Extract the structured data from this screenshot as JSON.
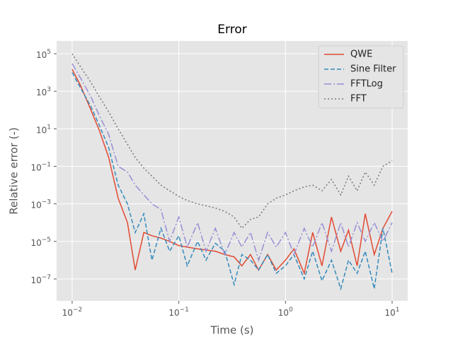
{
  "chart_data": {
    "type": "line",
    "title": "Error",
    "x_label": "Time (s)",
    "y_label": "Relative error (-)",
    "x": [
      0.01,
      0.012,
      0.015,
      0.018,
      0.022,
      0.027,
      0.033,
      0.039,
      0.047,
      0.056,
      0.068,
      0.082,
      0.1,
      0.12,
      0.15,
      0.18,
      0.22,
      0.27,
      0.33,
      0.39,
      0.47,
      0.56,
      0.68,
      0.82,
      1,
      1.2,
      1.5,
      1.8,
      2.2,
      2.7,
      3.3,
      3.9,
      4.7,
      5.6,
      6.8,
      8.2,
      10
    ],
    "series": [
      {
        "name": "QWE",
        "color": "#E24A33",
        "dash": "none",
        "values": [
          15000,
          2000,
          100,
          8,
          0.3,
          0.002,
          0.0001,
          3e-07,
          3e-05,
          2e-05,
          1.5e-05,
          1e-05,
          6e-06,
          5e-06,
          4e-06,
          3.5e-06,
          3e-06,
          2e-06,
          1.5e-06,
          5e-07,
          2e-06,
          3e-07,
          2e-06,
          3e-07,
          1e-06,
          4e-06,
          2e-07,
          3e-05,
          5e-07,
          0.0002,
          3e-06,
          4e-05,
          5e-07,
          0.0003,
          2e-06,
          5e-05,
          0.0004
        ]
      },
      {
        "name": "Sine Filter",
        "color": "#348ABD",
        "dash": "6 3",
        "values": [
          10000,
          1500,
          150,
          15,
          1,
          0.01,
          0.001,
          3e-05,
          0.0003,
          1e-06,
          5e-05,
          3e-06,
          2e-05,
          5e-07,
          1e-05,
          1e-06,
          8e-06,
          3e-06,
          5e-08,
          2e-06,
          1e-06,
          3e-07,
          2e-06,
          2e-07,
          5e-07,
          2e-06,
          1e-07,
          3e-06,
          8e-08,
          1e-06,
          3e-08,
          1e-06,
          2e-07,
          3e-06,
          3e-08,
          5e-05,
          2e-07
        ]
      },
      {
        "name": "FFTLog",
        "color": "#988ED5",
        "dash": "10 3 2 3",
        "values": [
          30000,
          5000,
          500,
          50,
          5,
          0.1,
          0.05,
          0.01,
          0.003,
          0.001,
          0.0005,
          1e-05,
          0.0002,
          5e-06,
          0.0001,
          3e-06,
          5e-05,
          2e-06,
          3e-05,
          5e-06,
          3e-05,
          1e-06,
          3e-05,
          5e-06,
          3e-05,
          2e-06,
          5e-05,
          5e-06,
          0.0001,
          3e-06,
          0.0001,
          5e-06,
          0.0001,
          1e-05,
          0.0001,
          1e-05,
          0.0001
        ]
      },
      {
        "name": "FFT",
        "color": "#777777",
        "dash": "2 3",
        "values": [
          100000,
          20000,
          3000,
          500,
          80,
          10,
          1.5,
          0.3,
          0.08,
          0.03,
          0.01,
          0.005,
          0.0025,
          0.0015,
          0.001,
          0.0008,
          0.0006,
          0.0004,
          0.0002,
          5e-05,
          0.00015,
          0.0002,
          0.001,
          0.002,
          0.003,
          0.005,
          0.008,
          0.01,
          0.005,
          0.02,
          0.003,
          0.03,
          0.005,
          0.05,
          0.01,
          0.1,
          0.2
        ]
      }
    ],
    "xlog": true,
    "ylog": true,
    "grid": true,
    "legend": "upper right",
    "xlim": [
      0.00715,
      14
    ],
    "ylim": [
      6.8e-09,
      480000
    ],
    "xticks": [
      {
        "value": 0.01,
        "label": "10^−2"
      },
      {
        "value": 0.1,
        "label": "10^−1"
      },
      {
        "value": 1,
        "label": "10^0"
      },
      {
        "value": 10,
        "label": "10^1"
      }
    ],
    "yticks": [
      {
        "value": 1e-07,
        "label": "10^−7"
      },
      {
        "value": 1e-05,
        "label": "10^−5"
      },
      {
        "value": 0.001,
        "label": "10^−3"
      },
      {
        "value": 0.1,
        "label": "10^−1"
      },
      {
        "value": 10,
        "label": "10^1"
      },
      {
        "value": 1000,
        "label": "10^3"
      },
      {
        "value": 100000,
        "label": "10^5"
      }
    ]
  }
}
